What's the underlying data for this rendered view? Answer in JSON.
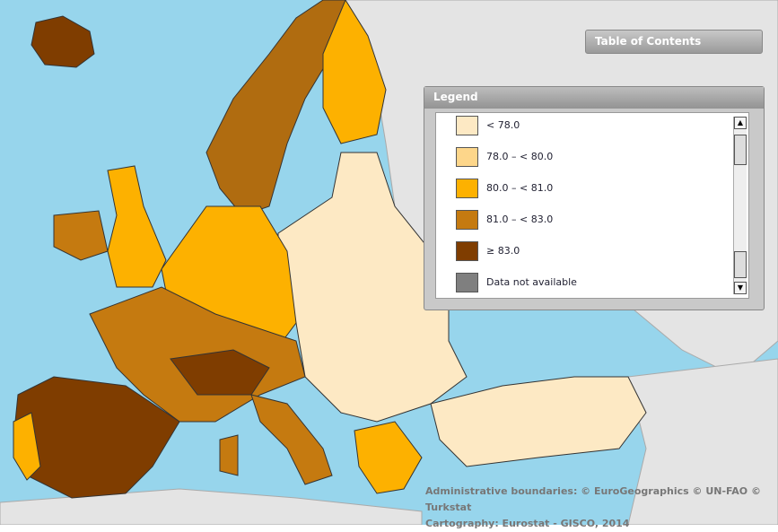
{
  "toc": {
    "title": "Table of Contents"
  },
  "legend": {
    "title": "Legend",
    "items": [
      {
        "label": "< 78.0",
        "color": "#fde9c4"
      },
      {
        "label": "78.0 – < 80.0",
        "color": "#fdd68a"
      },
      {
        "label": "80.0 – < 81.0",
        "color": "#fdb100"
      },
      {
        "label": "81.0 – < 83.0",
        "color": "#c57a10"
      },
      {
        "label": "≥ 83.0",
        "color": "#7f3d00"
      },
      {
        "label": "Data not available",
        "color": "#7f7f7f"
      }
    ]
  },
  "attribution": [
    "Administrative boundaries: © EuroGeographics © UN-FAO © Turkstat",
    "Cartography: Eurostat - GISCO, 2014"
  ]
}
